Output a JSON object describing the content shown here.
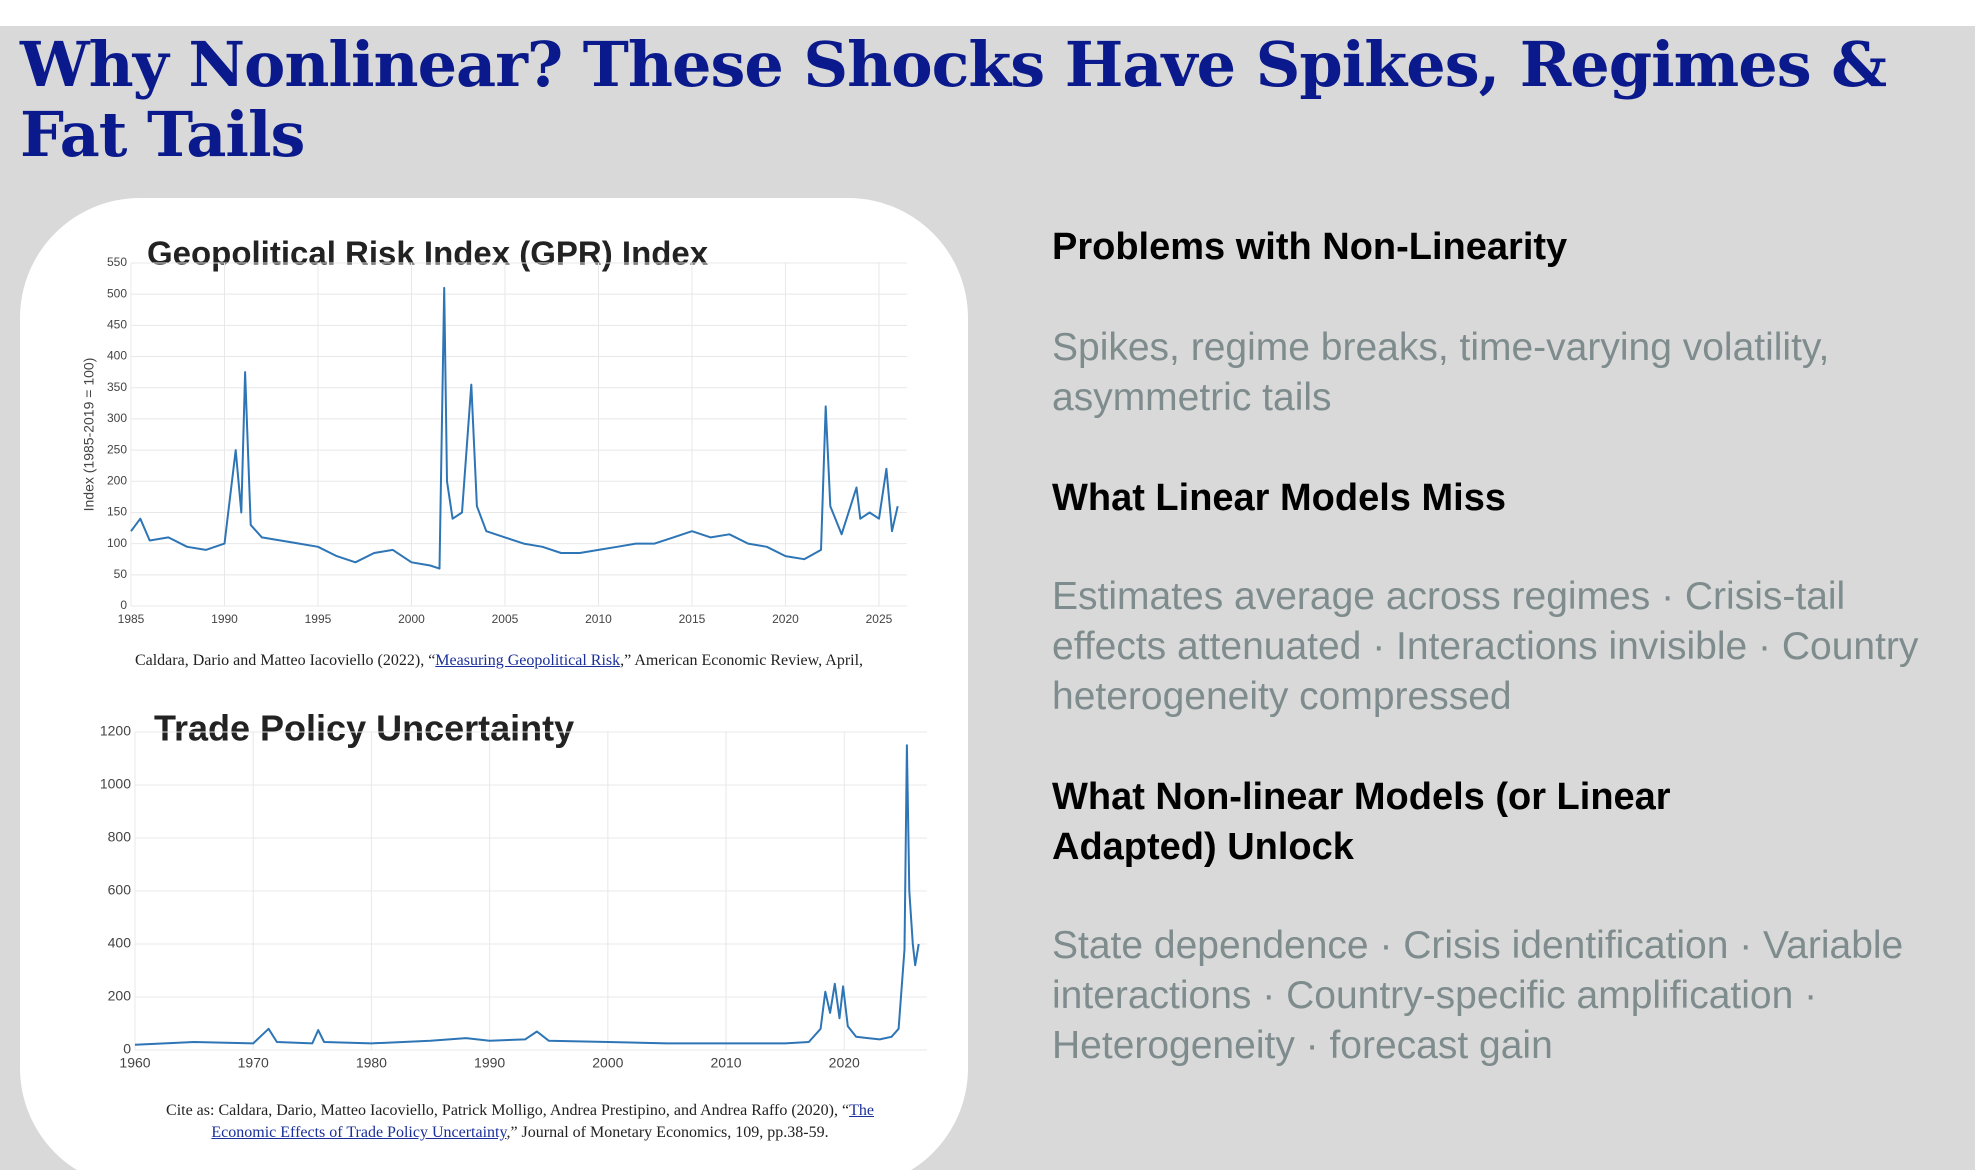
{
  "title": "Why Nonlinear? These Shocks Have Spikes, Regimes & Fat Tails",
  "sections": [
    {
      "heading": "Problems with Non-Linearity",
      "body": "Spikes, regime breaks, time-varying volatility, asymmetric tails"
    },
    {
      "heading": "What Linear Models Miss",
      "body": "Estimates average across regimes · Crisis-tail effects attenuated · Interactions invisible · Country heterogeneity compressed"
    },
    {
      "heading": "What Non-linear Models (or Linear Adapted) Unlock",
      "body": "State dependence · Crisis identification · Variable interactions · Country-specific amplification · Heterogeneity  ·  forecast gain"
    }
  ],
  "chart_data": [
    {
      "type": "line",
      "title": "Geopolitical Risk Index (GPR) Index",
      "y_label": "Index (1985-2019 = 100)",
      "source_prefix": "Caldara, Dario and Matteo Iacoviello (2022), “",
      "source_link": "Measuring Geopolitical Risk",
      "source_suffix": ",” American Economic Review, April,",
      "xlim": [
        1985,
        2026.5
      ],
      "ylim": [
        0,
        550
      ],
      "xticks": [
        1985,
        1990,
        1995,
        2000,
        2005,
        2010,
        2015,
        2020,
        2025
      ],
      "yticks": [
        0,
        50,
        100,
        150,
        200,
        250,
        300,
        350,
        400,
        450,
        500,
        550
      ],
      "grid": true,
      "series": [
        {
          "color": "#2e75b6",
          "x": [
            1985,
            1985.5,
            1986,
            1987,
            1988,
            1989,
            1990,
            1990.6,
            1990.9,
            1991.1,
            1991.4,
            1992,
            1993,
            1994,
            1995,
            1996,
            1997,
            1998,
            1999,
            2000,
            2001,
            2001.5,
            2001.75,
            2001.9,
            2002.2,
            2002.7,
            2003.2,
            2003.5,
            2004,
            2005,
            2006,
            2007,
            2008,
            2009,
            2010,
            2011,
            2012,
            2013,
            2014,
            2015,
            2016,
            2017,
            2018,
            2019,
            2020,
            2021,
            2021.9,
            2022.15,
            2022.4,
            2023,
            2023.8,
            2024,
            2024.5,
            2025,
            2025.4,
            2025.7,
            2026
          ],
          "values": [
            120,
            140,
            105,
            110,
            95,
            90,
            100,
            250,
            150,
            375,
            130,
            110,
            105,
            100,
            95,
            80,
            70,
            85,
            90,
            70,
            65,
            60,
            510,
            200,
            140,
            150,
            355,
            160,
            120,
            110,
            100,
            95,
            85,
            85,
            90,
            95,
            100,
            100,
            110,
            120,
            110,
            115,
            100,
            95,
            80,
            75,
            90,
            320,
            160,
            115,
            190,
            140,
            150,
            140,
            220,
            120,
            160
          ]
        }
      ]
    },
    {
      "type": "line",
      "title": "Trade Policy Uncertainty",
      "source_prefix": "Cite as: Caldara, Dario, Matteo Iacoviello, Patrick Molligo, Andrea Prestipino, and Andrea Raffo (2020), “",
      "source_link": "The Economic Effects of Trade Policy Uncertainty",
      "source_suffix": ",” Journal of Monetary Economics, 109, pp.38-59.",
      "xlim": [
        1960,
        2027
      ],
      "ylim": [
        0,
        1200
      ],
      "xticks": [
        1960,
        1970,
        1980,
        1990,
        2000,
        2010,
        2020
      ],
      "yticks": [
        0,
        200,
        400,
        600,
        800,
        1000,
        1200
      ],
      "grid": true,
      "series": [
        {
          "color": "#2e75b6",
          "x": [
            1960,
            1965,
            1970,
            1971.3,
            1972,
            1975,
            1975.5,
            1976,
            1980,
            1985,
            1988,
            1990,
            1993,
            1994,
            1995,
            2000,
            2005,
            2010,
            2015,
            2017,
            2018,
            2018.4,
            2018.8,
            2019.2,
            2019.6,
            2019.9,
            2020.3,
            2021,
            2022,
            2023,
            2024,
            2024.6,
            2025.1,
            2025.3,
            2025.5,
            2025.8,
            2026,
            2026.3
          ],
          "values": [
            20,
            30,
            25,
            80,
            30,
            25,
            75,
            30,
            25,
            35,
            45,
            35,
            40,
            70,
            35,
            30,
            25,
            25,
            25,
            30,
            80,
            220,
            140,
            250,
            120,
            240,
            90,
            50,
            45,
            40,
            50,
            80,
            380,
            1150,
            600,
            400,
            320,
            400
          ]
        }
      ]
    }
  ]
}
